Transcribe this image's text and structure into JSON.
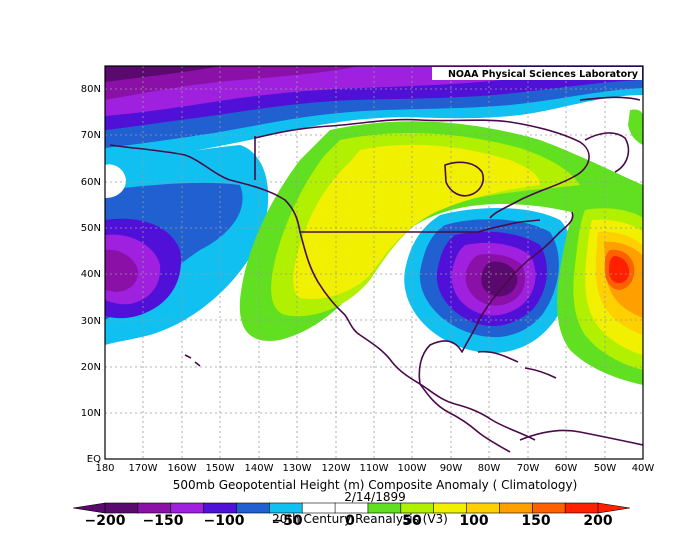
{
  "credit": "NOAA Physical Sciences Laboratory",
  "title": "500mb Geopotential Height (m) Composite Anomaly ( Climatology)",
  "date": "2/14/1899",
  "dataset": "20th Century Reanalysis (V3)",
  "map": {
    "lon_range": [
      -180,
      -40
    ],
    "lat_range": [
      0,
      85
    ],
    "lon_ticks": [
      "180",
      "170W",
      "160W",
      "150W",
      "140W",
      "130W",
      "120W",
      "110W",
      "100W",
      "90W",
      "80W",
      "70W",
      "60W",
      "50W",
      "40W"
    ],
    "lat_ticks": [
      "EQ",
      "10N",
      "20N",
      "30N",
      "40N",
      "50N",
      "60N",
      "70N",
      "80N"
    ],
    "grid": true
  },
  "colorbar": {
    "labels": [
      "−200",
      "−150",
      "−100",
      "−50",
      "0",
      "50",
      "100",
      "150",
      "200"
    ],
    "colors": [
      "#5a0a6e",
      "#8a10a8",
      "#a020e0",
      "#5010d8",
      "#2060d0",
      "#10c0f0",
      "#ffffff",
      "#ffffff",
      "#60e020",
      "#b0f000",
      "#f0f000",
      "#ffd000",
      "#ffa000",
      "#ff6000",
      "#ff2000"
    ]
  }
}
